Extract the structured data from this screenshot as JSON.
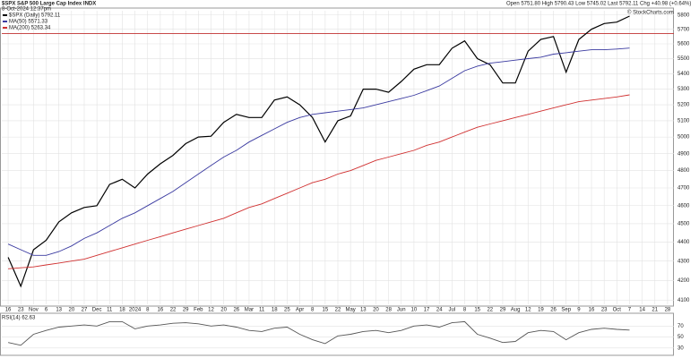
{
  "header": {
    "title": "$SPX S&P 500 Large Cap Index INDX",
    "date": "8-Oct-2024 12:37pm",
    "source": "© StockCharts.com",
    "quote": "Open 5751.80  High 5790.43  Low 5745.02  Last 5792.11  Chg +40.98 (+0.64%)"
  },
  "chart_data": [
    {
      "type": "line",
      "log_scale": true,
      "grid": true,
      "categories": [
        "16",
        "23",
        "Nov",
        "6",
        "13",
        "20",
        "27",
        "Dec",
        "11",
        "18",
        "2024",
        "8",
        "16",
        "22",
        "29",
        "Feb",
        "12",
        "20",
        "26",
        "Mar",
        "11",
        "18",
        "25",
        "Apr",
        "8",
        "15",
        "22",
        "May",
        "13",
        "20",
        "28",
        "Jun",
        "10",
        "17",
        "24",
        "Jul",
        "8",
        "15",
        "22",
        "29",
        "Aug",
        "12",
        "19",
        "26",
        "Sep",
        "9",
        "16",
        "23",
        "Oct",
        "7",
        "14",
        "21",
        "28"
      ],
      "series": [
        {
          "name": "$SPX (Daily) 5792.11",
          "color": "#000000",
          "values": [
            4320,
            4170,
            4360,
            4410,
            4510,
            4560,
            4590,
            4600,
            4720,
            4750,
            4700,
            4780,
            4840,
            4890,
            4960,
            5000,
            5005,
            5090,
            5140,
            5120,
            5120,
            5230,
            5250,
            5200,
            5120,
            4970,
            5100,
            5130,
            5300,
            5300,
            5280,
            5350,
            5430,
            5460,
            5460,
            5570,
            5620,
            5500,
            5460,
            5340,
            5340,
            5550,
            5630,
            5650,
            5410,
            5630,
            5700,
            5740,
            5750,
            5792.11,
            null,
            null,
            null
          ]
        },
        {
          "name": "MA(50) 5571.33",
          "color": "#3a3aa0",
          "values": [
            4390,
            4360,
            4330,
            4330,
            4350,
            4380,
            4420,
            4450,
            4490,
            4530,
            4560,
            4600,
            4640,
            4680,
            4730,
            4780,
            4830,
            4880,
            4920,
            4970,
            5010,
            5050,
            5090,
            5120,
            5140,
            5150,
            5160,
            5170,
            5180,
            5200,
            5220,
            5240,
            5260,
            5290,
            5320,
            5370,
            5420,
            5450,
            5470,
            5480,
            5490,
            5500,
            5510,
            5530,
            5540,
            5550,
            5560,
            5560,
            5565,
            5571.33,
            null,
            null,
            null
          ]
        },
        {
          "name": "MA(200) 5263.34",
          "color": "#d03030",
          "values": [
            4260,
            4265,
            4270,
            4280,
            4290,
            4300,
            4310,
            4330,
            4350,
            4370,
            4390,
            4410,
            4430,
            4450,
            4470,
            4490,
            4510,
            4530,
            4560,
            4590,
            4610,
            4640,
            4670,
            4700,
            4730,
            4750,
            4780,
            4800,
            4830,
            4860,
            4880,
            4900,
            4920,
            4950,
            4970,
            5000,
            5030,
            5060,
            5080,
            5100,
            5120,
            5140,
            5160,
            5180,
            5200,
            5220,
            5230,
            5240,
            5250,
            5263.34,
            null,
            null,
            null
          ]
        }
      ],
      "reference_line": 5670,
      "reference_color": "#c03030",
      "ylim": [
        4080,
        5830
      ],
      "yticks": [
        4100,
        4200,
        4300,
        4400,
        4500,
        4600,
        4700,
        4800,
        4900,
        5000,
        5100,
        5200,
        5300,
        5400,
        5500,
        5600,
        5700,
        5800
      ]
    },
    {
      "type": "line",
      "title": "RSI(14) 62.63",
      "grid": true,
      "series": [
        {
          "name": "RSI(14)",
          "color": "#555555",
          "values": [
            40,
            35,
            55,
            62,
            68,
            70,
            72,
            70,
            78,
            78,
            65,
            70,
            72,
            75,
            76,
            74,
            70,
            72,
            68,
            62,
            60,
            66,
            68,
            55,
            45,
            38,
            52,
            55,
            60,
            62,
            58,
            62,
            70,
            72,
            68,
            76,
            78,
            55,
            48,
            40,
            42,
            58,
            62,
            60,
            45,
            58,
            64,
            66,
            64,
            62.63,
            null,
            null,
            null
          ]
        }
      ],
      "ylim": [
        20,
        90
      ],
      "yticks": [
        30,
        50,
        70
      ]
    }
  ]
}
